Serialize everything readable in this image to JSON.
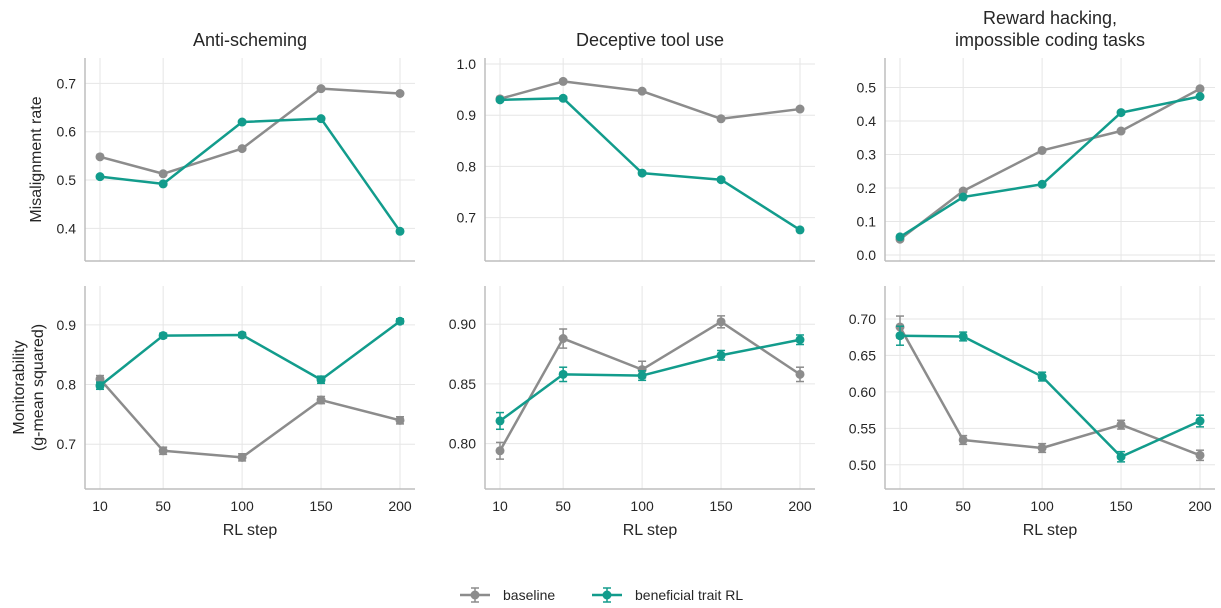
{
  "legend": {
    "baseline": "baseline",
    "trait": "beneficial trait RL"
  },
  "colors": {
    "baseline": "#8c8c8c",
    "trait": "#129c8c",
    "grid": "#e6e6e6",
    "axis": "#bdbdbd"
  },
  "chart_data": [
    {
      "type": "line",
      "title": "Anti-scheming",
      "ylabel": "Misalignment rate",
      "xlabel": "",
      "x": [
        10,
        50,
        100,
        150,
        200
      ],
      "ylim": [
        0.345,
        0.74
      ],
      "yticks": [
        0.4,
        0.5,
        0.6,
        0.7
      ],
      "yticklabels": [
        "0.4",
        "0.5",
        "0.6",
        "0.7"
      ],
      "xticklabels": [],
      "series": [
        {
          "name": "baseline",
          "values": [
            0.548,
            0.513,
            0.565,
            0.689,
            0.679
          ],
          "err": [
            0.003,
            0.003,
            0.003,
            0.003,
            0.003
          ]
        },
        {
          "name": "beneficial trait RL",
          "values": [
            0.507,
            0.492,
            0.62,
            0.627,
            0.394
          ],
          "err": [
            0.003,
            0.003,
            0.003,
            0.003,
            0.003
          ]
        }
      ]
    },
    {
      "type": "line",
      "title": "Deceptive tool use",
      "ylabel": "",
      "xlabel": "",
      "x": [
        10,
        50,
        100,
        150,
        200
      ],
      "ylim": [
        0.627,
        1.0
      ],
      "yticks": [
        0.7,
        0.8,
        0.9,
        1.0
      ],
      "yticklabels": [
        "0.7",
        "0.8",
        "0.9",
        "1.0"
      ],
      "xticklabels": [],
      "series": [
        {
          "name": "baseline",
          "values": [
            0.932,
            0.966,
            0.947,
            0.893,
            0.912
          ],
          "err": [
            0.003,
            0.003,
            0.003,
            0.003,
            0.003
          ]
        },
        {
          "name": "beneficial trait RL",
          "values": [
            0.93,
            0.933,
            0.787,
            0.774,
            0.676
          ],
          "err": [
            0.003,
            0.003,
            0.003,
            0.003,
            0.003
          ]
        }
      ]
    },
    {
      "type": "line",
      "title": "Reward hacking,\nimpossible coding tasks",
      "ylabel": "",
      "xlabel": "",
      "x": [
        10,
        50,
        100,
        150,
        200
      ],
      "ylim": [
        0.0,
        0.57
      ],
      "yticks": [
        0.0,
        0.1,
        0.2,
        0.3,
        0.4,
        0.5
      ],
      "yticklabels": [
        "0.0",
        "0.1",
        "0.2",
        "0.3",
        "0.4",
        "0.5"
      ],
      "xticklabels": [],
      "series": [
        {
          "name": "baseline",
          "values": [
            0.047,
            0.191,
            0.312,
            0.37,
            0.496
          ],
          "err": [
            0.004,
            0.004,
            0.004,
            0.004,
            0.004
          ]
        },
        {
          "name": "beneficial trait RL",
          "values": [
            0.054,
            0.173,
            0.211,
            0.425,
            0.473
          ],
          "err": [
            0.004,
            0.004,
            0.004,
            0.004,
            0.004
          ]
        }
      ]
    },
    {
      "type": "line",
      "title": "",
      "ylabel": "Monitorability\n(g-mean squared)",
      "xlabel": "RL step",
      "x": [
        10,
        50,
        100,
        150,
        200
      ],
      "ylim": [
        0.635,
        0.955
      ],
      "yticks": [
        0.7,
        0.8,
        0.9
      ],
      "yticklabels": [
        "0.7",
        "0.8",
        "0.9"
      ],
      "xticklabels": [
        "10",
        "50",
        "100",
        "150",
        "200"
      ],
      "series": [
        {
          "name": "baseline",
          "values": [
            0.809,
            0.689,
            0.678,
            0.774,
            0.74
          ],
          "err": [
            0.006,
            0.006,
            0.006,
            0.006,
            0.006
          ]
        },
        {
          "name": "beneficial trait RL",
          "values": [
            0.798,
            0.882,
            0.883,
            0.808,
            0.906
          ],
          "err": [
            0.006,
            0.004,
            0.004,
            0.006,
            0.004
          ]
        }
      ]
    },
    {
      "type": "line",
      "title": "",
      "ylabel": "",
      "xlabel": "RL step",
      "x": [
        10,
        50,
        100,
        150,
        200
      ],
      "ylim": [
        0.767,
        0.927
      ],
      "yticks": [
        0.8,
        0.85,
        0.9
      ],
      "yticklabels": [
        "0.80",
        "0.85",
        "0.90"
      ],
      "xticklabels": [
        "10",
        "50",
        "100",
        "150",
        "200"
      ],
      "series": [
        {
          "name": "baseline",
          "values": [
            0.794,
            0.888,
            0.862,
            0.902,
            0.858
          ],
          "err": [
            0.007,
            0.008,
            0.007,
            0.005,
            0.006
          ]
        },
        {
          "name": "beneficial trait RL",
          "values": [
            0.819,
            0.858,
            0.857,
            0.874,
            0.887
          ],
          "err": [
            0.007,
            0.006,
            0.004,
            0.004,
            0.004
          ]
        }
      ]
    },
    {
      "type": "line",
      "title": "",
      "ylabel": "",
      "xlabel": "RL step",
      "x": [
        10,
        50,
        100,
        150,
        200
      ],
      "ylim": [
        0.475,
        0.737
      ],
      "yticks": [
        0.5,
        0.55,
        0.6,
        0.65,
        0.7
      ],
      "yticklabels": [
        "0.50",
        "0.55",
        "0.60",
        "0.65",
        "0.70"
      ],
      "xticklabels": [
        "10",
        "50",
        "100",
        "150",
        "200"
      ],
      "series": [
        {
          "name": "baseline",
          "values": [
            0.689,
            0.534,
            0.523,
            0.555,
            0.513
          ],
          "err": [
            0.015,
            0.006,
            0.006,
            0.006,
            0.007
          ]
        },
        {
          "name": "beneficial trait RL",
          "values": [
            0.677,
            0.676,
            0.621,
            0.511,
            0.56
          ],
          "err": [
            0.013,
            0.006,
            0.006,
            0.007,
            0.008
          ]
        }
      ]
    }
  ]
}
